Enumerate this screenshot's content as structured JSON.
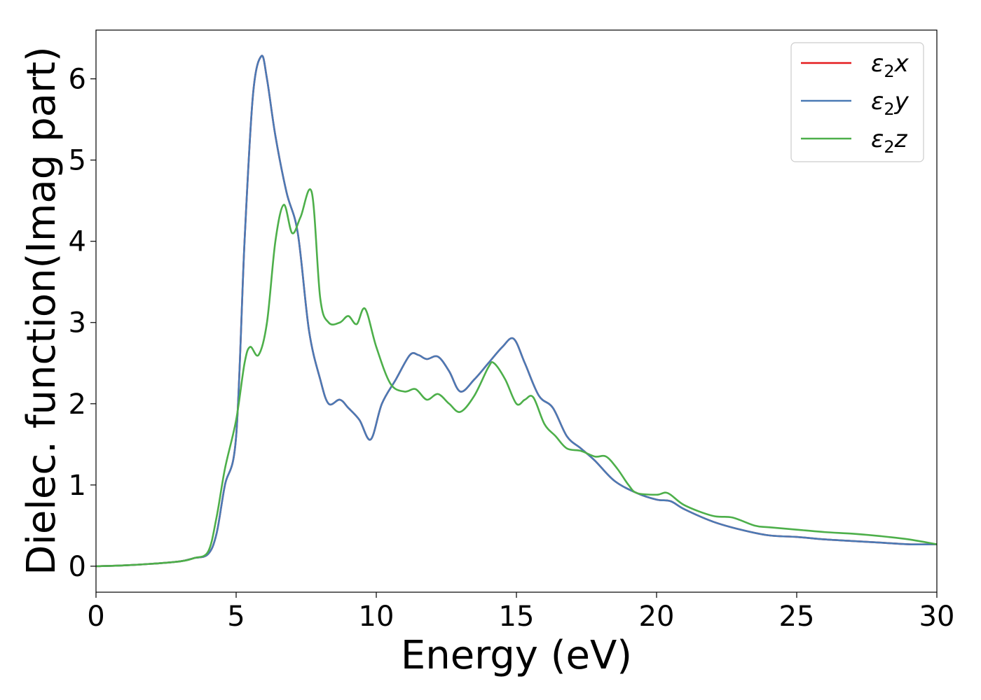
{
  "chart_data": {
    "type": "line",
    "title": "",
    "xlabel": "Energy (eV)",
    "ylabel": "Dielec. function(Imag part)",
    "xlim": [
      0,
      30
    ],
    "ylim": [
      -0.32,
      6.6
    ],
    "xticks": [
      0,
      5,
      10,
      15,
      20,
      25,
      30
    ],
    "yticks": [
      0,
      1,
      2,
      3,
      4,
      5,
      6
    ],
    "grid": false,
    "legend_position": "top-right",
    "series": [
      {
        "name": "ε₂x",
        "legend_base": "ε",
        "legend_sub": "2",
        "legend_suffix": "x",
        "color": "#e41a1c",
        "x": [
          0,
          1,
          2,
          3,
          3.5,
          4,
          4.3,
          4.6,
          5,
          5.3,
          5.6,
          5.9,
          6.1,
          6.4,
          6.8,
          7.2,
          7.6,
          8.0,
          8.3,
          8.7,
          9.0,
          9.4,
          9.8,
          10.2,
          10.7,
          11.2,
          11.5,
          11.8,
          12.2,
          12.6,
          13.0,
          13.5,
          14.0,
          14.5,
          14.9,
          15.3,
          15.8,
          16.3,
          16.8,
          17.3,
          17.8,
          18.5,
          19.3,
          20.0,
          20.5,
          21.0,
          22.0,
          23.0,
          24.0,
          25.0,
          26.0,
          27.0,
          28.0,
          29.0,
          30.0
        ],
        "y": [
          0,
          0.01,
          0.03,
          0.06,
          0.1,
          0.15,
          0.4,
          1.0,
          1.6,
          4.0,
          5.8,
          6.28,
          6.0,
          5.3,
          4.6,
          4.1,
          2.9,
          2.3,
          2.0,
          2.05,
          1.95,
          1.8,
          1.56,
          2.0,
          2.3,
          2.6,
          2.6,
          2.55,
          2.58,
          2.4,
          2.15,
          2.3,
          2.5,
          2.7,
          2.8,
          2.5,
          2.1,
          1.95,
          1.6,
          1.45,
          1.3,
          1.05,
          0.9,
          0.82,
          0.8,
          0.7,
          0.55,
          0.45,
          0.38,
          0.36,
          0.33,
          0.31,
          0.29,
          0.27,
          0.27
        ]
      },
      {
        "name": "ε₂y",
        "legend_base": "ε",
        "legend_sub": "2",
        "legend_suffix": "y",
        "color": "#4a7ab5",
        "x": [
          0,
          1,
          2,
          3,
          3.5,
          4,
          4.3,
          4.6,
          5,
          5.3,
          5.6,
          5.9,
          6.1,
          6.4,
          6.8,
          7.2,
          7.6,
          8.0,
          8.3,
          8.7,
          9.0,
          9.4,
          9.8,
          10.2,
          10.7,
          11.2,
          11.5,
          11.8,
          12.2,
          12.6,
          13.0,
          13.5,
          14.0,
          14.5,
          14.9,
          15.3,
          15.8,
          16.3,
          16.8,
          17.3,
          17.8,
          18.5,
          19.3,
          20.0,
          20.5,
          21.0,
          22.0,
          23.0,
          24.0,
          25.0,
          26.0,
          27.0,
          28.0,
          29.0,
          30.0
        ],
        "y": [
          0,
          0.01,
          0.03,
          0.06,
          0.1,
          0.15,
          0.4,
          1.0,
          1.6,
          4.0,
          5.8,
          6.28,
          6.0,
          5.3,
          4.6,
          4.1,
          2.9,
          2.3,
          2.0,
          2.05,
          1.95,
          1.8,
          1.56,
          2.0,
          2.3,
          2.6,
          2.6,
          2.55,
          2.58,
          2.4,
          2.15,
          2.3,
          2.5,
          2.7,
          2.8,
          2.5,
          2.1,
          1.95,
          1.6,
          1.45,
          1.3,
          1.05,
          0.9,
          0.82,
          0.8,
          0.7,
          0.55,
          0.45,
          0.38,
          0.36,
          0.33,
          0.31,
          0.29,
          0.27,
          0.27
        ]
      },
      {
        "name": "ε₂z",
        "legend_base": "ε",
        "legend_sub": "2",
        "legend_suffix": "z",
        "color": "#4daf4a",
        "x": [
          0,
          1,
          2,
          3,
          3.5,
          4,
          4.3,
          4.6,
          5,
          5.3,
          5.5,
          5.8,
          6.1,
          6.4,
          6.7,
          7.0,
          7.3,
          7.7,
          8.0,
          8.3,
          8.7,
          9.0,
          9.3,
          9.6,
          10.0,
          10.5,
          11.0,
          11.4,
          11.8,
          12.2,
          12.6,
          13.0,
          13.5,
          14.0,
          14.2,
          14.6,
          15.0,
          15.3,
          15.6,
          16.0,
          16.4,
          16.8,
          17.3,
          17.8,
          18.2,
          18.6,
          19.0,
          19.3,
          20.0,
          20.4,
          21.0,
          22.0,
          22.7,
          23.5,
          24.0,
          25.0,
          26.0,
          27.0,
          28.0,
          29.0,
          30.0
        ],
        "y": [
          0,
          0.01,
          0.03,
          0.06,
          0.1,
          0.18,
          0.6,
          1.2,
          1.8,
          2.5,
          2.7,
          2.6,
          3.0,
          4.0,
          4.45,
          4.1,
          4.3,
          4.6,
          3.3,
          3.0,
          3.0,
          3.08,
          2.98,
          3.17,
          2.7,
          2.25,
          2.15,
          2.18,
          2.05,
          2.12,
          2.0,
          1.9,
          2.1,
          2.45,
          2.5,
          2.3,
          2.0,
          2.05,
          2.08,
          1.75,
          1.6,
          1.45,
          1.42,
          1.35,
          1.35,
          1.2,
          1.0,
          0.9,
          0.88,
          0.9,
          0.75,
          0.62,
          0.6,
          0.5,
          0.48,
          0.45,
          0.42,
          0.4,
          0.37,
          0.33,
          0.27
        ]
      }
    ]
  }
}
